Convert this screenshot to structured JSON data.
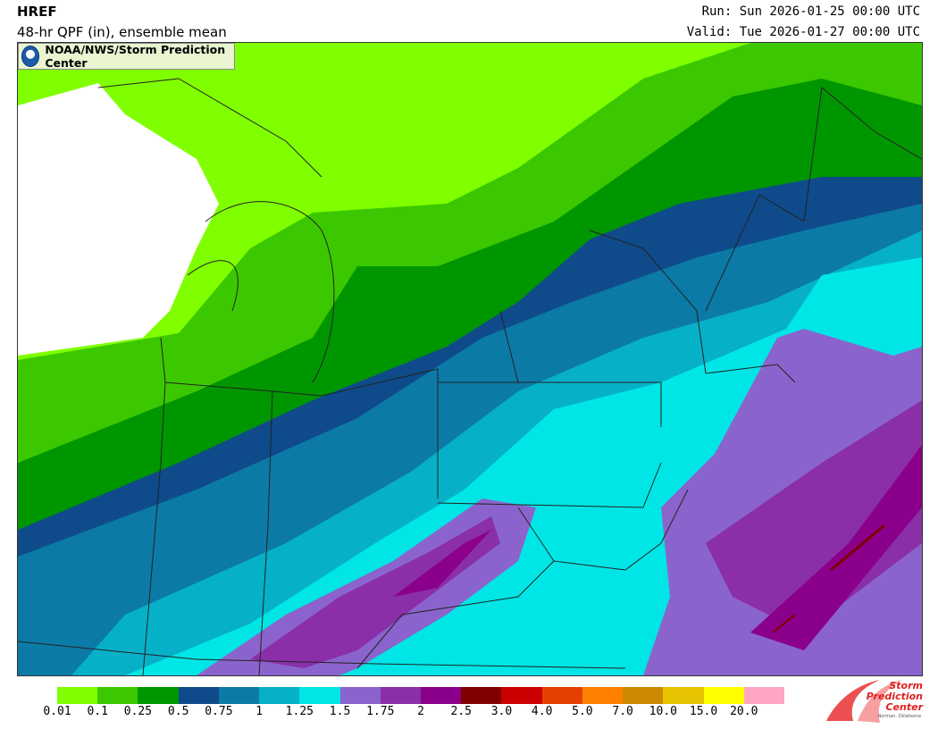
{
  "header": {
    "title": "HREF",
    "subtitle": "48-hr QPF (in), ensemble mean",
    "run": "Run: Sun 2026-01-25 00:00 UTC",
    "valid": "Valid: Tue 2026-01-27 00:00 UTC"
  },
  "attribution": "NOAA/NWS/Storm Prediction Center",
  "logo": {
    "line1": "Storm",
    "line2": "Prediction",
    "line3": "Center",
    "sub": "Norman, Oklahoma"
  },
  "legend": {
    "labels": [
      "0.01",
      "0.1",
      "0.25",
      "0.5",
      "0.75",
      "1",
      "1.25",
      "1.5",
      "1.75",
      "2",
      "2.5",
      "3.0",
      "4.0",
      "5.0",
      "7.0",
      "10.0",
      "15.0",
      "20.0"
    ],
    "colors": [
      "#80ff00",
      "#3cc800",
      "#009600",
      "#0f4b8a",
      "#0c7aa6",
      "#06b0c8",
      "#00e6e6",
      "#8a64cc",
      "#8a2fa8",
      "#8a008a",
      "#800000",
      "#cc0000",
      "#e64000",
      "#ff8000",
      "#cc8800",
      "#e6c300",
      "#ffff00",
      "#ffa6c3"
    ]
  }
}
